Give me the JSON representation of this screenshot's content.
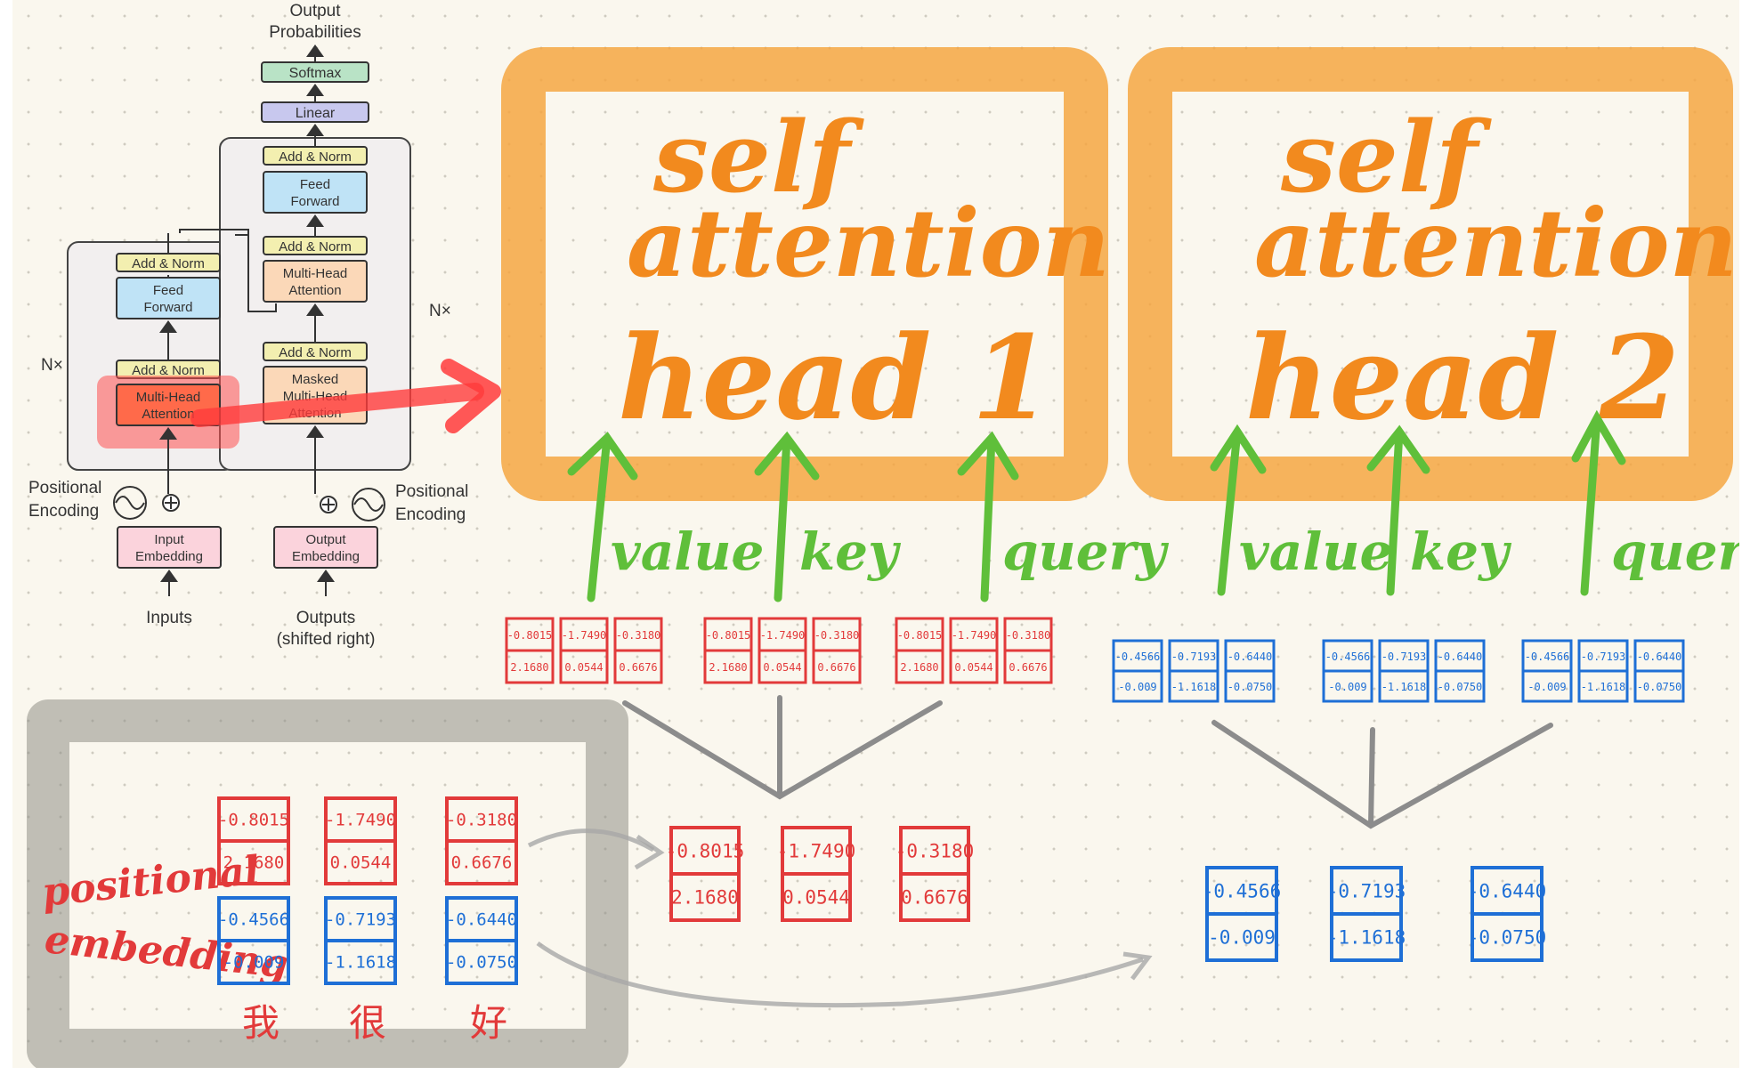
{
  "architecture": {
    "output_probabilities": [
      "Output",
      "Probabilities"
    ],
    "softmax": "Softmax",
    "linear": "Linear",
    "add_norm": "Add & Norm",
    "feed_forward": [
      "Feed",
      "Forward"
    ],
    "multi_head_attention": [
      "Multi-Head",
      "Attention"
    ],
    "masked_multi_head_attention": [
      "Masked",
      "Multi-Head",
      "Attention"
    ],
    "nx": "N×",
    "positional_encoding": [
      "Positional",
      "Encoding"
    ],
    "input_embedding": [
      "Input",
      "Embedding"
    ],
    "output_embedding": [
      "Output",
      "Embedding"
    ],
    "inputs": "Inputs",
    "outputs": [
      "Outputs",
      "(shifted right)"
    ]
  },
  "heads": [
    {
      "title": [
        "self",
        "attention"
      ],
      "label": "head 1",
      "arrows": [
        "value",
        "key",
        "query"
      ],
      "color": "#e23a3a"
    },
    {
      "title": [
        "self",
        "attention"
      ],
      "label": "head 2",
      "arrows": [
        "value",
        "key",
        "query"
      ],
      "color": "#1e6fd6"
    }
  ],
  "tokens": [
    {
      "char": "我",
      "red": [
        "-0.8015",
        "2.1680"
      ],
      "blue": [
        "-0.4566",
        "-0.009"
      ]
    },
    {
      "char": "很",
      "red": [
        "-1.7490",
        "0.0544"
      ],
      "blue": [
        "-0.7193",
        "-1.1618"
      ]
    },
    {
      "char": "好",
      "red": [
        "-0.3180",
        "0.6676"
      ],
      "blue": [
        "-0.6440",
        "-0.0750"
      ]
    }
  ],
  "positional_embedding_label": [
    "positional",
    "embedding"
  ],
  "colors": {
    "orange": "#f5a33c",
    "green": "#5fbf3a",
    "red": "#e23a3a",
    "blue": "#1e6fd6",
    "gray": "#8c8c8c",
    "highlight": "#ff3b3b"
  }
}
